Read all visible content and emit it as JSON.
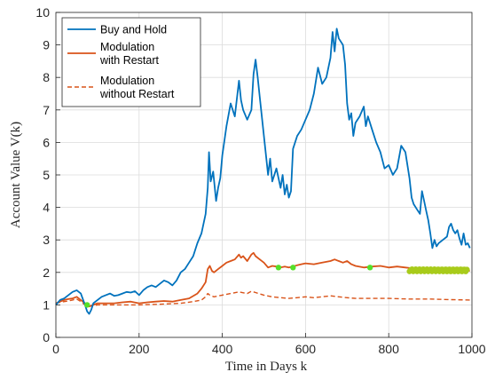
{
  "chart_data": {
    "type": "line",
    "title": "",
    "xlabel": "Time in Days k",
    "ylabel": "Account Value V(k)",
    "xlim": [
      0,
      1000
    ],
    "ylim": [
      0,
      10
    ],
    "xticks": [
      "0",
      "200",
      "400",
      "600",
      "800",
      "1000"
    ],
    "yticks": [
      "0",
      "1",
      "2",
      "3",
      "4",
      "5",
      "6",
      "7",
      "8",
      "9",
      "10"
    ],
    "grid": true,
    "legend_position": "top-left",
    "series": [
      {
        "name": "Buy and Hold",
        "color": "#0072BD",
        "style": "solid",
        "points": [
          [
            0,
            1.0
          ],
          [
            10,
            1.15
          ],
          [
            20,
            1.2
          ],
          [
            30,
            1.3
          ],
          [
            40,
            1.4
          ],
          [
            50,
            1.45
          ],
          [
            60,
            1.35
          ],
          [
            70,
            1.0
          ],
          [
            75,
            0.8
          ],
          [
            80,
            0.72
          ],
          [
            85,
            0.85
          ],
          [
            90,
            1.05
          ],
          [
            100,
            1.15
          ],
          [
            110,
            1.25
          ],
          [
            120,
            1.3
          ],
          [
            130,
            1.35
          ],
          [
            140,
            1.28
          ],
          [
            150,
            1.3
          ],
          [
            160,
            1.35
          ],
          [
            170,
            1.4
          ],
          [
            180,
            1.38
          ],
          [
            190,
            1.42
          ],
          [
            200,
            1.3
          ],
          [
            210,
            1.45
          ],
          [
            220,
            1.55
          ],
          [
            230,
            1.6
          ],
          [
            240,
            1.55
          ],
          [
            250,
            1.65
          ],
          [
            260,
            1.75
          ],
          [
            270,
            1.7
          ],
          [
            280,
            1.6
          ],
          [
            290,
            1.75
          ],
          [
            300,
            2.0
          ],
          [
            310,
            2.1
          ],
          [
            320,
            2.3
          ],
          [
            330,
            2.5
          ],
          [
            340,
            2.9
          ],
          [
            350,
            3.2
          ],
          [
            360,
            3.8
          ],
          [
            365,
            4.6
          ],
          [
            368,
            5.7
          ],
          [
            372,
            4.8
          ],
          [
            378,
            5.1
          ],
          [
            385,
            4.2
          ],
          [
            390,
            4.6
          ],
          [
            395,
            4.9
          ],
          [
            400,
            5.6
          ],
          [
            410,
            6.5
          ],
          [
            420,
            7.2
          ],
          [
            430,
            6.8
          ],
          [
            440,
            7.9
          ],
          [
            445,
            7.3
          ],
          [
            450,
            7.0
          ],
          [
            460,
            6.7
          ],
          [
            470,
            7.0
          ],
          [
            475,
            8.1
          ],
          [
            480,
            8.55
          ],
          [
            485,
            8.0
          ],
          [
            490,
            7.4
          ],
          [
            500,
            6.2
          ],
          [
            510,
            5.0
          ],
          [
            515,
            5.5
          ],
          [
            520,
            4.8
          ],
          [
            530,
            5.2
          ],
          [
            540,
            4.6
          ],
          [
            545,
            5.0
          ],
          [
            550,
            4.4
          ],
          [
            555,
            4.7
          ],
          [
            560,
            4.3
          ],
          [
            565,
            4.5
          ],
          [
            570,
            5.8
          ],
          [
            580,
            6.2
          ],
          [
            590,
            6.4
          ],
          [
            600,
            6.7
          ],
          [
            610,
            7.0
          ],
          [
            620,
            7.5
          ],
          [
            630,
            8.3
          ],
          [
            640,
            7.8
          ],
          [
            650,
            8.0
          ],
          [
            660,
            8.6
          ],
          [
            665,
            9.4
          ],
          [
            670,
            8.8
          ],
          [
            675,
            9.5
          ],
          [
            680,
            9.2
          ],
          [
            690,
            9.0
          ],
          [
            695,
            8.4
          ],
          [
            700,
            7.2
          ],
          [
            705,
            6.7
          ],
          [
            710,
            6.9
          ],
          [
            715,
            6.2
          ],
          [
            720,
            6.6
          ],
          [
            730,
            6.8
          ],
          [
            740,
            7.1
          ],
          [
            745,
            6.5
          ],
          [
            750,
            6.8
          ],
          [
            760,
            6.4
          ],
          [
            770,
            6.0
          ],
          [
            780,
            5.7
          ],
          [
            790,
            5.2
          ],
          [
            800,
            5.3
          ],
          [
            810,
            5.0
          ],
          [
            820,
            5.2
          ],
          [
            830,
            5.9
          ],
          [
            840,
            5.7
          ],
          [
            850,
            4.9
          ],
          [
            855,
            4.3
          ],
          [
            860,
            4.1
          ],
          [
            870,
            3.9
          ],
          [
            875,
            3.8
          ],
          [
            880,
            4.5
          ],
          [
            885,
            4.2
          ],
          [
            890,
            3.9
          ],
          [
            895,
            3.6
          ],
          [
            900,
            3.2
          ],
          [
            905,
            2.75
          ],
          [
            910,
            3.0
          ],
          [
            915,
            2.8
          ],
          [
            920,
            2.9
          ],
          [
            930,
            3.0
          ],
          [
            940,
            3.1
          ],
          [
            945,
            3.4
          ],
          [
            950,
            3.5
          ],
          [
            955,
            3.3
          ],
          [
            960,
            3.2
          ],
          [
            965,
            3.3
          ],
          [
            970,
            3.05
          ],
          [
            975,
            2.85
          ],
          [
            980,
            3.2
          ],
          [
            985,
            2.85
          ],
          [
            990,
            2.9
          ],
          [
            995,
            2.75
          ]
        ]
      },
      {
        "name": "Modulation with Restart",
        "color": "#D95319",
        "style": "solid",
        "points": [
          [
            0,
            1.05
          ],
          [
            10,
            1.1
          ],
          [
            20,
            1.15
          ],
          [
            30,
            1.18
          ],
          [
            40,
            1.2
          ],
          [
            50,
            1.25
          ],
          [
            60,
            1.15
          ],
          [
            70,
            1.05
          ],
          [
            75,
            1.0
          ],
          [
            80,
            0.95
          ],
          [
            90,
            1.0
          ],
          [
            100,
            1.05
          ],
          [
            120,
            1.05
          ],
          [
            140,
            1.05
          ],
          [
            160,
            1.08
          ],
          [
            180,
            1.1
          ],
          [
            200,
            1.05
          ],
          [
            220,
            1.08
          ],
          [
            240,
            1.1
          ],
          [
            260,
            1.12
          ],
          [
            280,
            1.1
          ],
          [
            300,
            1.15
          ],
          [
            320,
            1.2
          ],
          [
            340,
            1.35
          ],
          [
            350,
            1.5
          ],
          [
            360,
            1.7
          ],
          [
            365,
            2.1
          ],
          [
            370,
            2.2
          ],
          [
            375,
            2.05
          ],
          [
            380,
            2.0
          ],
          [
            390,
            2.1
          ],
          [
            400,
            2.2
          ],
          [
            410,
            2.3
          ],
          [
            420,
            2.35
          ],
          [
            430,
            2.4
          ],
          [
            440,
            2.55
          ],
          [
            445,
            2.45
          ],
          [
            450,
            2.5
          ],
          [
            460,
            2.35
          ],
          [
            470,
            2.55
          ],
          [
            475,
            2.6
          ],
          [
            480,
            2.5
          ],
          [
            490,
            2.4
          ],
          [
            500,
            2.3
          ],
          [
            510,
            2.15
          ],
          [
            520,
            2.2
          ],
          [
            530,
            2.18
          ],
          [
            540,
            2.15
          ],
          [
            550,
            2.18
          ],
          [
            560,
            2.15
          ],
          [
            570,
            2.18
          ],
          [
            580,
            2.22
          ],
          [
            590,
            2.25
          ],
          [
            600,
            2.28
          ],
          [
            620,
            2.25
          ],
          [
            640,
            2.3
          ],
          [
            660,
            2.35
          ],
          [
            670,
            2.4
          ],
          [
            680,
            2.35
          ],
          [
            690,
            2.3
          ],
          [
            700,
            2.35
          ],
          [
            710,
            2.25
          ],
          [
            720,
            2.2
          ],
          [
            740,
            2.15
          ],
          [
            760,
            2.18
          ],
          [
            780,
            2.2
          ],
          [
            800,
            2.15
          ],
          [
            820,
            2.18
          ],
          [
            840,
            2.15
          ],
          [
            860,
            2.12
          ],
          [
            880,
            2.1
          ],
          [
            900,
            2.08
          ],
          [
            920,
            2.1
          ],
          [
            940,
            2.05
          ],
          [
            960,
            2.08
          ],
          [
            980,
            2.05
          ],
          [
            995,
            2.05
          ]
        ]
      },
      {
        "name": "Modulation without Restart",
        "color": "#D95319",
        "style": "dashed",
        "points": [
          [
            0,
            1.05
          ],
          [
            10,
            1.08
          ],
          [
            20,
            1.1
          ],
          [
            30,
            1.12
          ],
          [
            40,
            1.15
          ],
          [
            50,
            1.18
          ],
          [
            60,
            1.1
          ],
          [
            70,
            1.0
          ],
          [
            80,
            0.95
          ],
          [
            100,
            1.0
          ],
          [
            150,
            1.0
          ],
          [
            200,
            1.0
          ],
          [
            250,
            1.02
          ],
          [
            300,
            1.05
          ],
          [
            330,
            1.1
          ],
          [
            350,
            1.15
          ],
          [
            360,
            1.25
          ],
          [
            365,
            1.35
          ],
          [
            370,
            1.3
          ],
          [
            380,
            1.25
          ],
          [
            400,
            1.3
          ],
          [
            420,
            1.35
          ],
          [
            440,
            1.4
          ],
          [
            460,
            1.35
          ],
          [
            470,
            1.42
          ],
          [
            480,
            1.38
          ],
          [
            500,
            1.3
          ],
          [
            520,
            1.25
          ],
          [
            540,
            1.22
          ],
          [
            560,
            1.2
          ],
          [
            580,
            1.22
          ],
          [
            600,
            1.25
          ],
          [
            620,
            1.22
          ],
          [
            640,
            1.25
          ],
          [
            660,
            1.28
          ],
          [
            680,
            1.25
          ],
          [
            700,
            1.22
          ],
          [
            720,
            1.2
          ],
          [
            760,
            1.2
          ],
          [
            800,
            1.2
          ],
          [
            850,
            1.18
          ],
          [
            900,
            1.18
          ],
          [
            950,
            1.16
          ],
          [
            995,
            1.15
          ]
        ]
      }
    ],
    "restart_markers": {
      "color": "#55E02A",
      "points": [
        [
          75,
          1.0
        ],
        [
          535,
          2.15
        ],
        [
          570,
          2.15
        ],
        [
          755,
          2.15
        ]
      ]
    },
    "restart_band": {
      "color": "#A8CB1B",
      "x_range": [
        850,
        990
      ],
      "y_center": 2.07
    }
  }
}
